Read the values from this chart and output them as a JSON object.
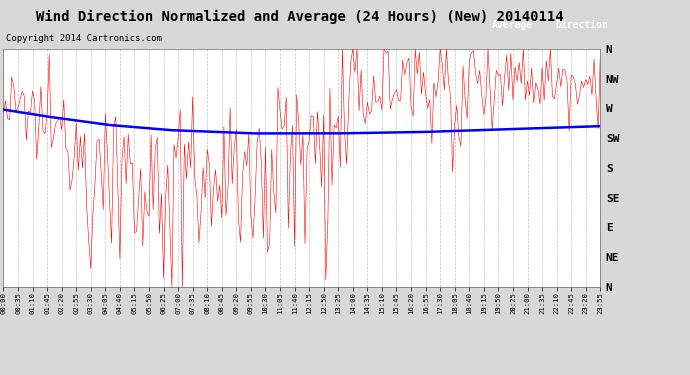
{
  "title": "Wind Direction Normalized and Average (24 Hours) (New) 20140114",
  "copyright": "Copyright 2014 Cartronics.com",
  "ytick_labels": [
    "N",
    "NW",
    "W",
    "SW",
    "S",
    "SE",
    "E",
    "NE",
    "N"
  ],
  "ytick_values": [
    360,
    315,
    270,
    225,
    180,
    135,
    90,
    45,
    0
  ],
  "ymin": 0,
  "ymax": 360,
  "background_color": "#d8d8d8",
  "plot_bg_color": "#ffffff",
  "grid_color": "#999999",
  "red_color": "#ff0000",
  "blue_color": "#0000ff",
  "legend_avg_bg": "#0000cc",
  "legend_dir_bg": "#cc0000",
  "title_fontsize": 10,
  "copyright_fontsize": 6.5,
  "avg_x": [
    0,
    20,
    50,
    80,
    120,
    160,
    200,
    240,
    287
  ],
  "avg_y": [
    268,
    258,
    245,
    237,
    232,
    232,
    234,
    238,
    243
  ],
  "red_base_x": [
    0,
    15,
    30,
    50,
    70,
    90,
    110,
    130,
    150,
    170,
    190,
    210,
    230,
    250,
    270,
    287
  ],
  "red_base_y": [
    270,
    255,
    235,
    200,
    175,
    170,
    185,
    210,
    225,
    295,
    310,
    315,
    320,
    318,
    315,
    318
  ]
}
